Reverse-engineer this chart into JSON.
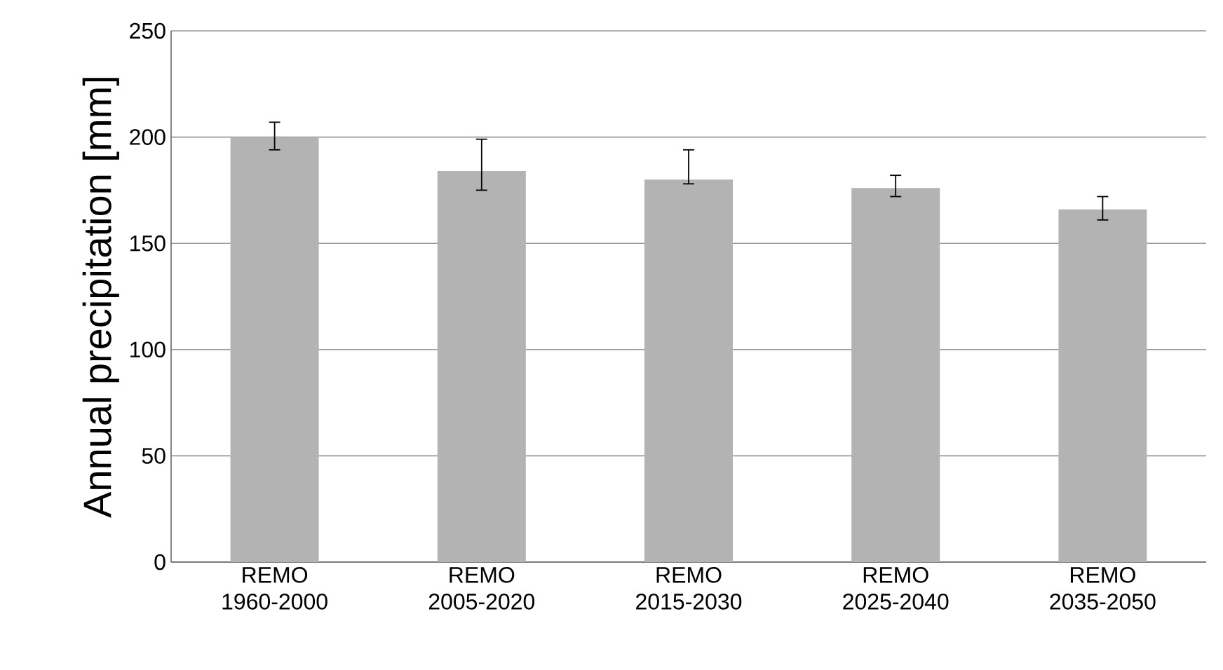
{
  "chart_data": {
    "type": "bar",
    "ylabel": "Annual precipitation [mm]",
    "categories": [
      "REMO 1960-2000",
      "REMO 2005-2020",
      "REMO 2015-2030",
      "REMO 2025-2040",
      "REMO 2035-2050"
    ],
    "values": [
      200,
      184,
      180,
      176,
      166
    ],
    "errors": [
      [
        194,
        207
      ],
      [
        175,
        199
      ],
      [
        178,
        194
      ],
      [
        172,
        182
      ],
      [
        161,
        172
      ]
    ],
    "color": "#b3b3b3",
    "ylim": [
      0,
      250
    ],
    "yticks": [
      0,
      50,
      100,
      150,
      200,
      250
    ],
    "grid": "y"
  }
}
